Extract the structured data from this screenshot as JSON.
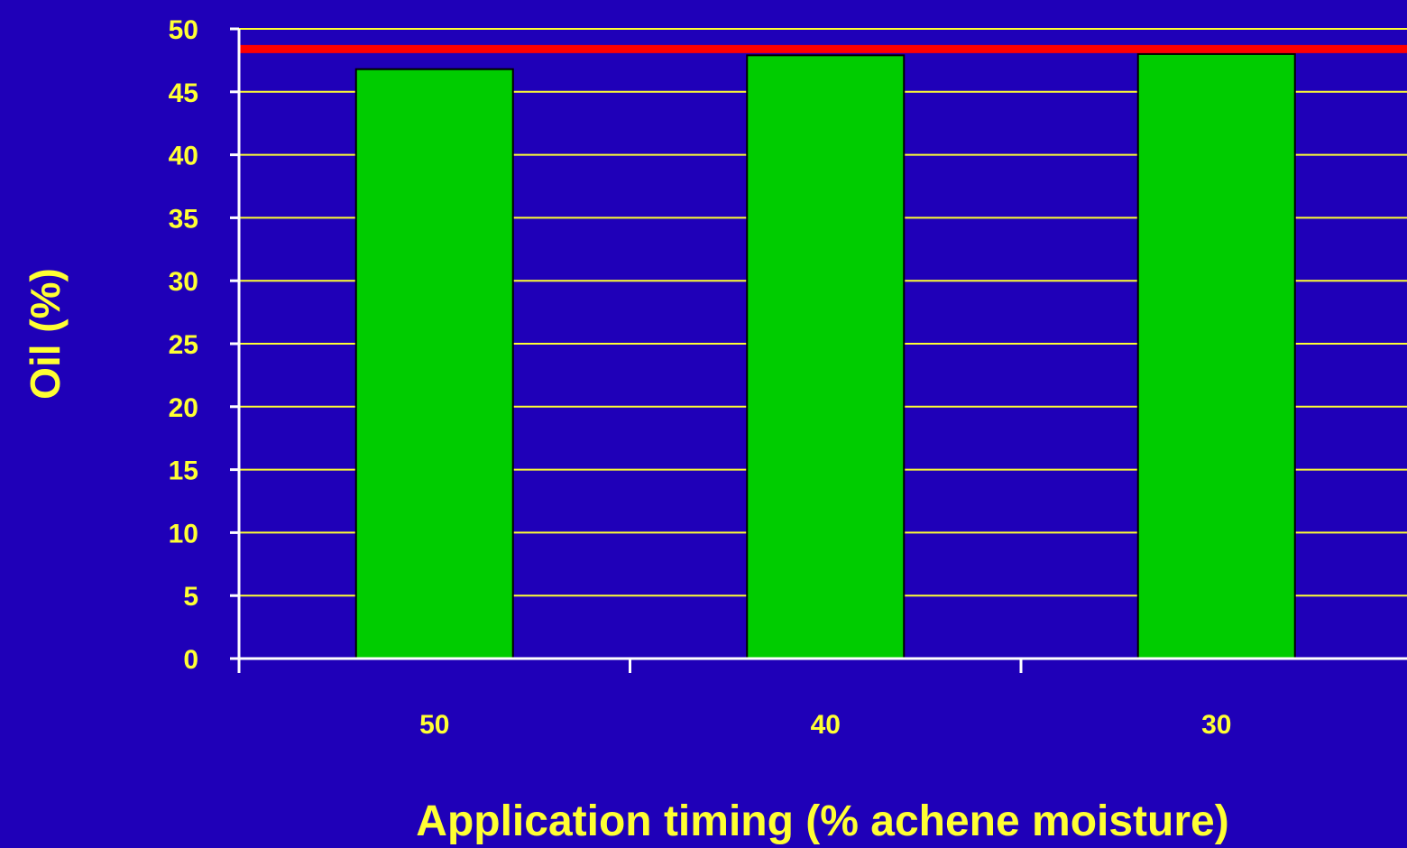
{
  "chart_data": {
    "type": "bar",
    "title": "",
    "xlabel": "Application timing (% achene moisture)",
    "ylabel": "Oil (%)",
    "categories": [
      "50",
      "40",
      "30"
    ],
    "values": [
      46.8,
      47.9,
      48.0
    ],
    "reference_line": {
      "value": 48.4,
      "color": "#ff0000"
    },
    "ylim": [
      0,
      50
    ],
    "yticks": [
      "0",
      "5",
      "10",
      "15",
      "20",
      "25",
      "30",
      "35",
      "40",
      "45",
      "50"
    ],
    "grid": true,
    "legend": "none",
    "colors": {
      "background": "#1f00b8",
      "bar": "#00cc00",
      "bar_edge": "#000000",
      "gridline": "#ffff33",
      "text": "#ffff33",
      "axis": "#ffffff"
    }
  }
}
